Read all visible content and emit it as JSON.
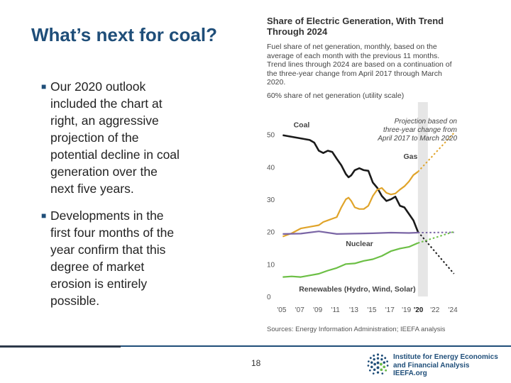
{
  "slide": {
    "title": "What’s next for coal?",
    "bullets": [
      "Our 2020 outlook included the chart at right, an aggressive projection of the potential decline in coal generation over the next five years.",
      "Developments in the first four months of the year confirm that this degree of market erosion is entirely possible."
    ],
    "page_number": "18"
  },
  "organization": {
    "name_lines": [
      "Institute for Energy Economics",
      "and Financial Analysis",
      "IEEFA.org"
    ],
    "logo_icon": "globe-dots-icon"
  },
  "chart_data": {
    "type": "line",
    "title": "Share of Electric Generation, With Trend Through 2024",
    "subtitle": "Fuel share of net generation, monthly, based on the average of each month with the previous 11 months. Trend lines through 2024 are based on a continuation of the three-year change from April 2017 through March 2020.",
    "ylabel": "60% share of net generation (utility scale)",
    "ylim": [
      0,
      60
    ],
    "yticks": [
      "0",
      "10",
      "20",
      "30",
      "40",
      "50"
    ],
    "xlim": [
      2004.5,
      2024.5
    ],
    "xticks": [
      "'05",
      "'07",
      "'09",
      "'11",
      "'13",
      "'15",
      "'17",
      "'19",
      "'20",
      "'22",
      "'24"
    ],
    "projection_note": "Projection based on three-year change from April 2017 to March 2020",
    "projection_start": 2020.0,
    "source": "Sources: Energy Information Administration; IEEFA analysis",
    "series": [
      {
        "name": "Coal",
        "color": "#1a1a1a",
        "x": [
          2005,
          2006,
          2007,
          2008,
          2008.5,
          2009,
          2009.5,
          2010,
          2010.5,
          2011,
          2011.5,
          2012,
          2012.3,
          2012.6,
          2013,
          2013.5,
          2014,
          2014.5,
          2015,
          2015.5,
          2016,
          2016.5,
          2017,
          2017.5,
          2018,
          2018.5,
          2019,
          2019.5,
          2020
        ],
        "y": [
          49.8,
          49.3,
          48.8,
          48.3,
          47.5,
          45.0,
          44.3,
          45.0,
          44.6,
          42.5,
          40.5,
          37.8,
          36.8,
          37.4,
          39.0,
          39.6,
          39.0,
          38.8,
          35.2,
          33.5,
          31.0,
          29.5,
          30.0,
          30.8,
          28.0,
          27.5,
          25.5,
          23.5,
          20.0
        ],
        "projection": {
          "x": [
            2020,
            2024
          ],
          "y": [
            20.0,
            7.0
          ]
        }
      },
      {
        "name": "Gas",
        "color": "#e0a42a",
        "x": [
          2005,
          2006,
          2007,
          2008,
          2009,
          2009.5,
          2010,
          2010.5,
          2011,
          2011.5,
          2012,
          2012.3,
          2012.6,
          2013,
          2013.5,
          2014,
          2014.5,
          2015,
          2015.5,
          2016,
          2016.5,
          2017,
          2017.5,
          2018,
          2018.5,
          2019,
          2019.5,
          2020
        ],
        "y": [
          18.5,
          19.5,
          21.0,
          21.5,
          22.0,
          23.0,
          23.5,
          24.0,
          24.5,
          27.5,
          30.0,
          30.5,
          29.5,
          27.5,
          27.0,
          27.0,
          28.0,
          31.0,
          33.0,
          33.5,
          32.0,
          31.5,
          31.8,
          33.0,
          34.0,
          35.5,
          37.5,
          38.5
        ],
        "projection": {
          "x": [
            2020,
            2024
          ],
          "y": [
            38.5,
            50.5
          ]
        }
      },
      {
        "name": "Nuclear",
        "color": "#7a65a5",
        "x": [
          2005,
          2007,
          2009,
          2011,
          2013,
          2015,
          2017,
          2019,
          2020
        ],
        "y": [
          19.3,
          19.4,
          20.1,
          19.3,
          19.4,
          19.5,
          19.7,
          19.6,
          19.7
        ],
        "projection": {
          "x": [
            2020,
            2024
          ],
          "y": [
            19.7,
            19.8
          ]
        }
      },
      {
        "name": "Renewables (Hydro, Wind, Solar)",
        "color": "#6cbf45",
        "x": [
          2005,
          2006,
          2007,
          2008,
          2009,
          2010,
          2011,
          2012,
          2013,
          2014,
          2015,
          2016,
          2017,
          2018,
          2019,
          2020
        ],
        "y": [
          6.0,
          6.2,
          6.0,
          6.5,
          7.0,
          8.0,
          8.8,
          10.0,
          10.2,
          11.0,
          11.5,
          12.5,
          14.0,
          14.8,
          15.3,
          16.5
        ],
        "projection": {
          "x": [
            2020,
            2024
          ],
          "y": [
            16.5,
            20.0
          ]
        }
      }
    ]
  }
}
